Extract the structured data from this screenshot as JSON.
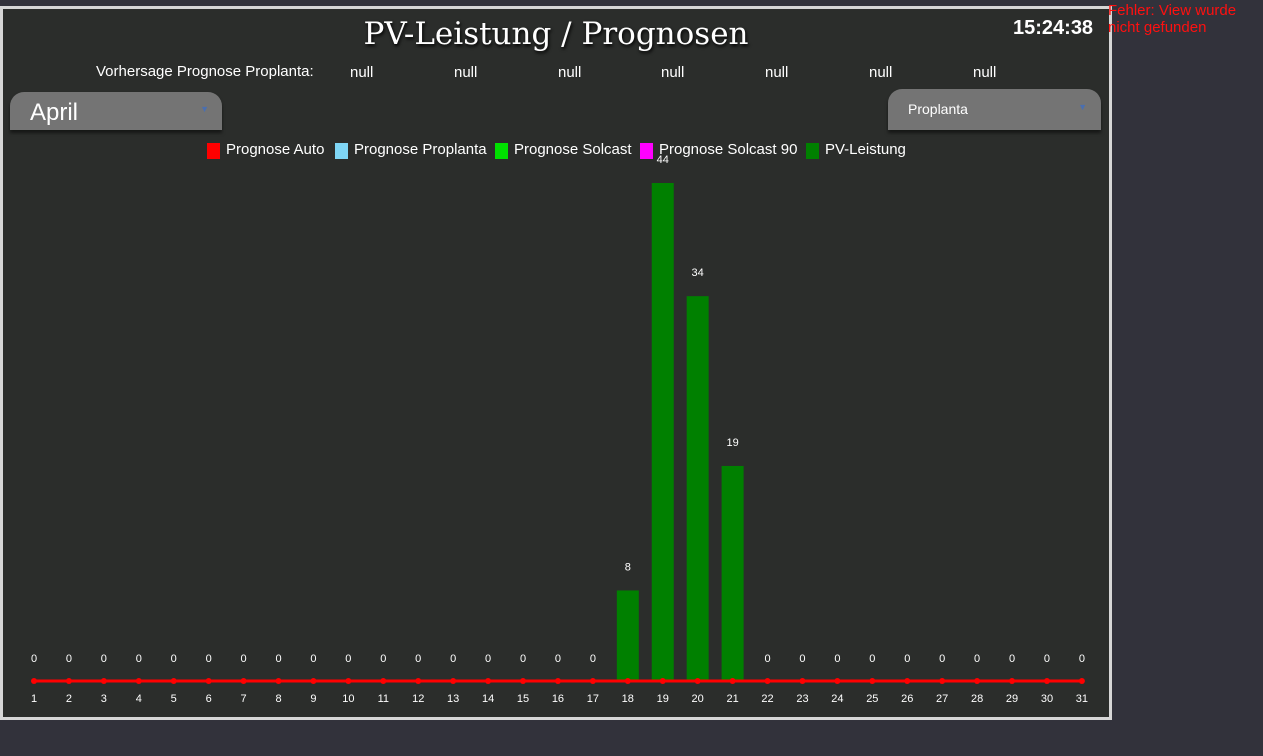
{
  "header": {
    "title": "PV-Leistung / Prognosen",
    "clock": "15:24:38"
  },
  "error": {
    "message": "Fehler: View wurde nicht gefunden"
  },
  "forecast": {
    "label": "Vorhersage Prognose Proplanta:",
    "values": [
      "null",
      "null",
      "null",
      "null",
      "null",
      "null",
      "null"
    ]
  },
  "month_select": {
    "value": "April"
  },
  "source_select": {
    "value": "Proplanta"
  },
  "colors": {
    "prognose_auto": "#ff0000",
    "prognose_proplanta": "#7fd6f5",
    "prognose_solcast": "#00e000",
    "prognose_solcast_90": "#ff00ff",
    "pv_leistung": "#008000"
  },
  "chart_data": {
    "type": "bar",
    "legend": [
      "Prognose Auto",
      "Prognose Proplanta",
      "Prognose Solcast",
      "Prognose Solcast 90",
      "PV-Leistung"
    ],
    "categories": [
      "1",
      "2",
      "3",
      "4",
      "5",
      "6",
      "7",
      "8",
      "9",
      "10",
      "11",
      "12",
      "13",
      "14",
      "15",
      "16",
      "17",
      "18",
      "19",
      "20",
      "21",
      "22",
      "23",
      "24",
      "25",
      "26",
      "27",
      "28",
      "29",
      "30",
      "31"
    ],
    "series": [
      {
        "name": "PV-Leistung",
        "type": "bar",
        "values": [
          0,
          0,
          0,
          0,
          0,
          0,
          0,
          0,
          0,
          0,
          0,
          0,
          0,
          0,
          0,
          0,
          0,
          8,
          44,
          34,
          19,
          0,
          0,
          0,
          0,
          0,
          0,
          0,
          0,
          0,
          0
        ]
      },
      {
        "name": "Prognose Auto",
        "type": "line",
        "values": [
          0,
          0,
          0,
          0,
          0,
          0,
          0,
          0,
          0,
          0,
          0,
          0,
          0,
          0,
          0,
          0,
          0,
          0,
          0,
          0,
          0,
          0,
          0,
          0,
          0,
          0,
          0,
          0,
          0,
          0,
          0
        ]
      }
    ],
    "data_labels": [
      "0",
      "0",
      "0",
      "0",
      "0",
      "0",
      "0",
      "0",
      "0",
      "0",
      "0",
      "0",
      "0",
      "0",
      "0",
      "0",
      "0",
      "8",
      "44",
      "34",
      "19",
      "0",
      "0",
      "0",
      "0",
      "0",
      "0",
      "0",
      "0",
      "0",
      "0"
    ],
    "ylim": [
      0,
      44
    ],
    "grid": false,
    "legend_position": "top-center"
  }
}
